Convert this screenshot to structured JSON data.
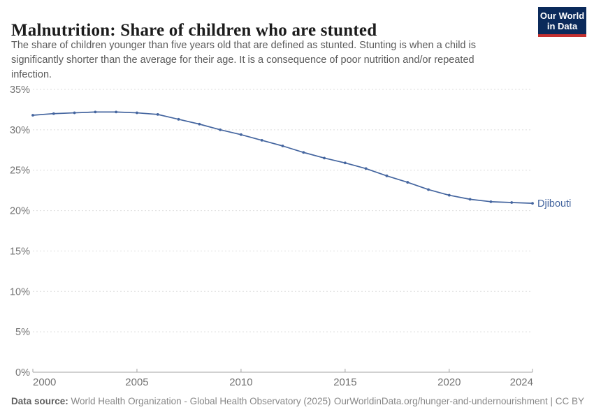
{
  "header": {
    "title": "Malnutrition: Share of children who are stunted",
    "subtitle_lines": [
      "The share of children younger than five years old that are defined as stunted. Stunting is when a child is",
      "significantly shorter than the average for their age. It is a consequence of poor nutrition and/or repeated",
      "infection."
    ],
    "logo": {
      "line1": "Our World",
      "line2": "in Data"
    }
  },
  "chart_data": {
    "type": "line",
    "title": "Malnutrition: Share of children who are stunted",
    "xlabel": "",
    "ylabel": "",
    "xlim": [
      2000,
      2024
    ],
    "ylim": [
      0,
      35
    ],
    "y_unit": "%",
    "x_ticks": [
      2000,
      2005,
      2010,
      2015,
      2020,
      2024
    ],
    "y_ticks": [
      0,
      5,
      10,
      15,
      20,
      25,
      30,
      35
    ],
    "grid": "horizontal-dashed",
    "legend_position": "end-of-line-label",
    "series": [
      {
        "name": "Djibouti",
        "color": "#44659f",
        "x": [
          2000,
          2001,
          2002,
          2003,
          2004,
          2005,
          2006,
          2007,
          2008,
          2009,
          2010,
          2011,
          2012,
          2013,
          2014,
          2015,
          2016,
          2017,
          2018,
          2019,
          2020,
          2021,
          2022,
          2023,
          2024
        ],
        "values": [
          31.8,
          32.0,
          32.1,
          32.2,
          32.2,
          32.1,
          31.9,
          31.3,
          30.7,
          30.0,
          29.4,
          28.7,
          28.0,
          27.2,
          26.5,
          25.9,
          25.2,
          24.3,
          23.5,
          22.6,
          21.9,
          21.4,
          21.1,
          21.0,
          20.9
        ]
      }
    ]
  },
  "footer": {
    "source_label": "Data source:",
    "source_text": " World Health Organization - Global Health Observatory (2025)",
    "link_text": "OurWorldinData.org/hunger-and-undernourishment | CC BY"
  },
  "colors": {
    "line": "#44659f",
    "logo_bg": "#0b2a5b",
    "logo_bar": "#c5302f",
    "gridline": "#dedede",
    "axis": "#a3a3a3",
    "tick_text": "#737373",
    "title_text": "#1c1c1c",
    "subtitle_text": "#5a5a5a",
    "footer_text": "#878787"
  }
}
